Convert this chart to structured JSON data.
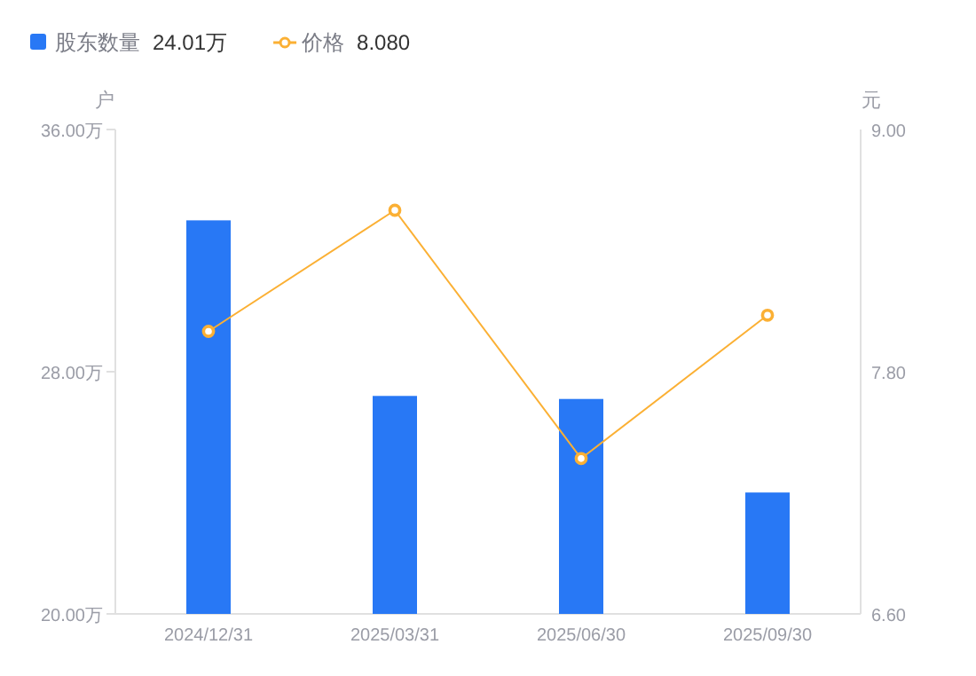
{
  "chart_data": {
    "type": "bar",
    "categories": [
      "2024/12/31",
      "2025/03/31",
      "2025/06/30",
      "2025/09/30"
    ],
    "series": [
      {
        "name": "股东数量",
        "color": "#2878f5",
        "values": [
          33.0,
          27.2,
          27.1,
          24.01
        ]
      },
      {
        "name": "价格",
        "type": "line",
        "axis": "y2",
        "color": "#fbb034",
        "marker": "circle",
        "values": [
          8.0,
          8.6,
          7.37,
          8.08
        ]
      }
    ],
    "ylabel": "户",
    "y2label": "元",
    "ylim": [
      20,
      36
    ],
    "yticks": [
      {
        "value": 20,
        "label": "20.00万"
      },
      {
        "value": 28,
        "label": "28.00万"
      },
      {
        "value": 36,
        "label": "36.00万"
      }
    ],
    "y2lim": [
      6.6,
      9.0
    ],
    "y2ticks": [
      {
        "value": 6.6,
        "label": "6.60"
      },
      {
        "value": 7.8,
        "label": "7.80"
      },
      {
        "value": 9.0,
        "label": "9.00"
      }
    ],
    "annotations": [
      "24.01万",
      "8.080"
    ],
    "legend": "top left",
    "grid": false
  }
}
